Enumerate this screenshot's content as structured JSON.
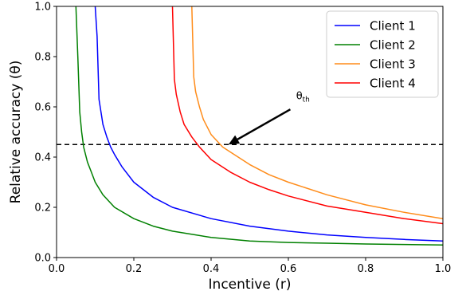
{
  "chart_data": {
    "type": "line",
    "xlabel": "Incentive (r)",
    "ylabel": "Relative accuracy (θ)",
    "xlim": [
      0.0,
      1.0
    ],
    "ylim": [
      0.0,
      1.0
    ],
    "xticks": [
      "0.0",
      "0.2",
      "0.4",
      "0.6",
      "0.8",
      "1.0"
    ],
    "yticks": [
      "0.0",
      "0.2",
      "0.4",
      "0.6",
      "0.8",
      "1.0"
    ],
    "grid": false,
    "legend_position": "top-right",
    "threshold": {
      "y": 0.45,
      "style": "dashed",
      "color": "#000000"
    },
    "annotation": {
      "text_main": "θ",
      "text_sub": "th",
      "points_to": [
        0.445,
        0.45
      ],
      "text_at": [
        0.62,
        0.63
      ]
    },
    "series": [
      {
        "name": "Client 1",
        "color": "#0000ff",
        "points": [
          [
            0.1,
            1.0
          ],
          [
            0.105,
            0.88
          ],
          [
            0.11,
            0.63
          ],
          [
            0.12,
            0.53
          ],
          [
            0.13,
            0.48
          ],
          [
            0.14,
            0.44
          ],
          [
            0.15,
            0.41
          ],
          [
            0.17,
            0.36
          ],
          [
            0.2,
            0.3
          ],
          [
            0.25,
            0.24
          ],
          [
            0.3,
            0.2
          ],
          [
            0.4,
            0.155
          ],
          [
            0.5,
            0.125
          ],
          [
            0.6,
            0.105
          ],
          [
            0.7,
            0.09
          ],
          [
            0.8,
            0.08
          ],
          [
            0.9,
            0.072
          ],
          [
            1.0,
            0.066
          ]
        ]
      },
      {
        "name": "Client 2",
        "color": "#008000",
        "points": [
          [
            0.05,
            1.0
          ],
          [
            0.055,
            0.8
          ],
          [
            0.06,
            0.58
          ],
          [
            0.065,
            0.5
          ],
          [
            0.07,
            0.44
          ],
          [
            0.08,
            0.38
          ],
          [
            0.09,
            0.34
          ],
          [
            0.1,
            0.3
          ],
          [
            0.12,
            0.25
          ],
          [
            0.15,
            0.2
          ],
          [
            0.2,
            0.155
          ],
          [
            0.25,
            0.125
          ],
          [
            0.3,
            0.105
          ],
          [
            0.4,
            0.08
          ],
          [
            0.5,
            0.066
          ],
          [
            0.6,
            0.06
          ],
          [
            0.7,
            0.057
          ],
          [
            0.8,
            0.054
          ],
          [
            0.9,
            0.052
          ],
          [
            1.0,
            0.05
          ]
        ]
      },
      {
        "name": "Client 3",
        "color": "#ff8c1a",
        "points": [
          [
            0.35,
            1.0
          ],
          [
            0.355,
            0.72
          ],
          [
            0.36,
            0.66
          ],
          [
            0.37,
            0.6
          ],
          [
            0.38,
            0.55
          ],
          [
            0.4,
            0.49
          ],
          [
            0.43,
            0.44
          ],
          [
            0.45,
            0.42
          ],
          [
            0.5,
            0.37
          ],
          [
            0.55,
            0.33
          ],
          [
            0.6,
            0.3
          ],
          [
            0.7,
            0.25
          ],
          [
            0.8,
            0.21
          ],
          [
            0.9,
            0.18
          ],
          [
            1.0,
            0.155
          ]
        ]
      },
      {
        "name": "Client 4",
        "color": "#ff0000",
        "points": [
          [
            0.3,
            1.0
          ],
          [
            0.305,
            0.71
          ],
          [
            0.31,
            0.65
          ],
          [
            0.32,
            0.58
          ],
          [
            0.33,
            0.53
          ],
          [
            0.35,
            0.48
          ],
          [
            0.37,
            0.44
          ],
          [
            0.4,
            0.39
          ],
          [
            0.45,
            0.34
          ],
          [
            0.5,
            0.3
          ],
          [
            0.55,
            0.27
          ],
          [
            0.6,
            0.245
          ],
          [
            0.7,
            0.205
          ],
          [
            0.8,
            0.18
          ],
          [
            0.9,
            0.155
          ],
          [
            1.0,
            0.135
          ]
        ]
      }
    ]
  }
}
